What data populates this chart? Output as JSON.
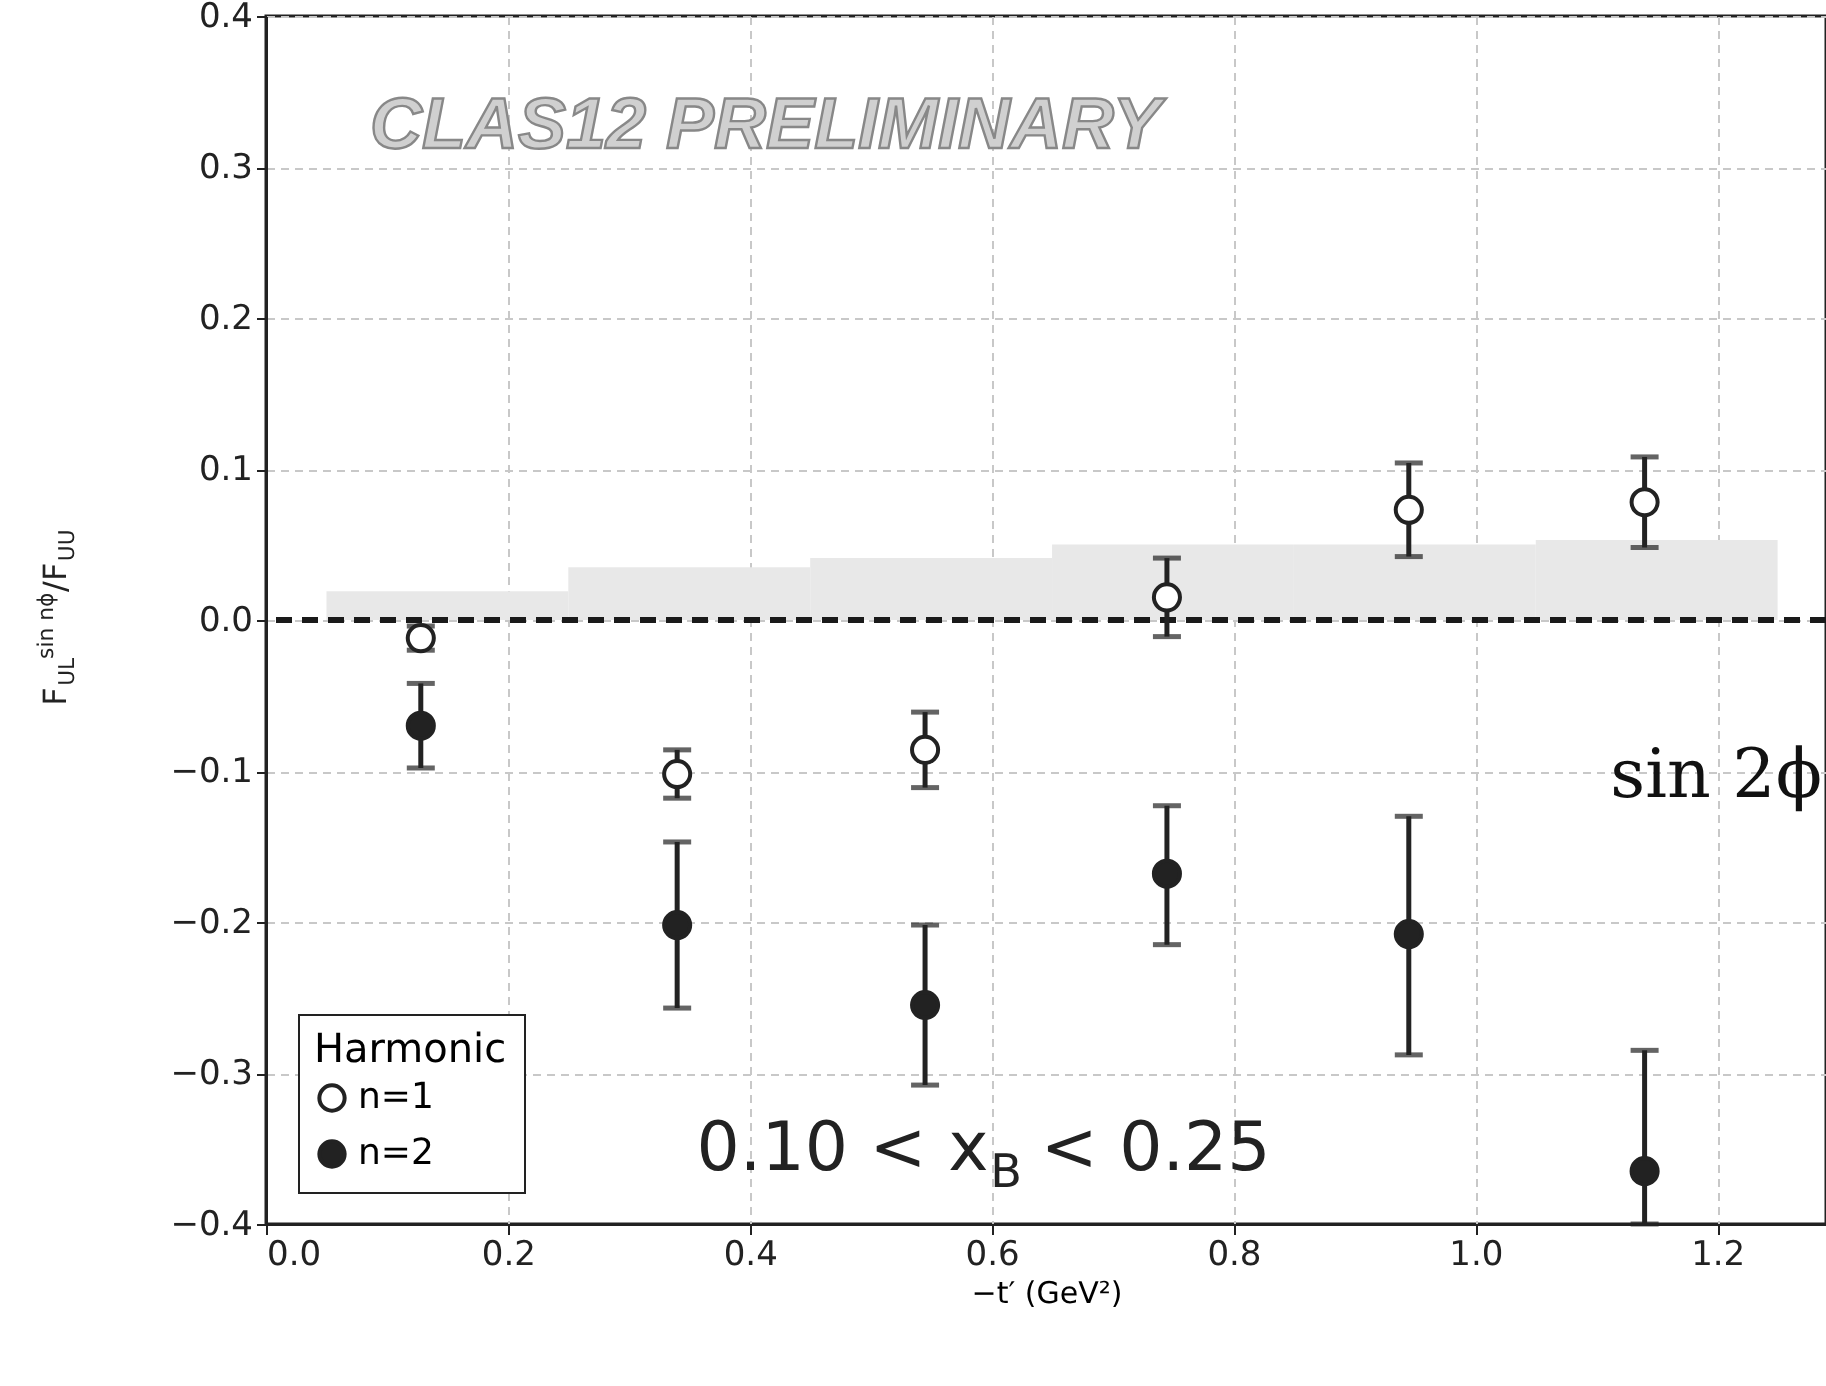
{
  "chart_data": {
    "type": "scatter",
    "xlabel": "−t′ (GeV²)",
    "ylabel": "F$_{UL}$$^{sin nϕ}$/F$_{UU}$",
    "legend_title": "Harmonic",
    "legend": "bottom left",
    "grid": true,
    "marker": "circle",
    "xlim": [
      0,
      1.29
    ],
    "xticks": [
      {
        "value": 0,
        "label": "0.0"
      },
      0.2,
      0.4,
      0.6,
      0.8,
      {
        "value": 1,
        "label": "1.0"
      },
      1.2
    ],
    "ylim": [
      -0.4,
      0.4
    ],
    "yticks": [
      {
        "value": -0.4,
        "label": "−0.4"
      },
      {
        "value": -0.3,
        "label": "−0.3"
      },
      {
        "value": -0.2,
        "label": "−0.2"
      },
      {
        "value": -0.1,
        "label": "−0.1"
      },
      {
        "value": 0,
        "label": "0.0"
      },
      0.1,
      0.2,
      0.3,
      0.4
    ],
    "ref_lines": [
      {
        "axis": "y",
        "value": 0,
        "color": "#1a1a1a",
        "line_style": "dashed"
      }
    ],
    "annotations": [
      "CLAS12 PRELIMINARY",
      "0.10 < x$_{B}$ < 0.25",
      "sin 2ϕ"
    ],
    "series": [
      {
        "type": "bar",
        "color": "#e8e8e8",
        "x": [
          0.15,
          0.35,
          0.55,
          0.75,
          0.95,
          1.15
        ],
        "values": [
          0.019,
          0.035,
          0.041,
          0.05,
          0.05,
          0.053
        ]
      },
      {
        "name": "n=1",
        "color": "#ffffff",
        "x": [
          0.128,
          0.34,
          0.545,
          0.745,
          0.945,
          1.14
        ],
        "values": [
          -0.012,
          -0.102,
          -0.086,
          0.015,
          0.073,
          0.078
        ],
        "errors": [
          [
            -0.02,
            -0.004
          ],
          [
            -0.118,
            -0.086
          ],
          [
            -0.111,
            -0.061
          ],
          [
            -0.011,
            0.041
          ],
          [
            0.042,
            0.104
          ],
          [
            0.048,
            0.108
          ]
        ]
      },
      {
        "name": "n=2",
        "color": "#222222",
        "x": [
          0.128,
          0.34,
          0.545,
          0.745,
          0.945,
          1.14
        ],
        "values": [
          -0.07,
          -0.202,
          -0.255,
          -0.168,
          -0.208,
          -0.365
        ],
        "errors": [
          [
            -0.098,
            -0.042
          ],
          [
            -0.257,
            -0.147
          ],
          [
            -0.308,
            -0.202
          ],
          [
            -0.215,
            -0.123
          ],
          [
            -0.288,
            -0.13
          ],
          [
            -0.4,
            -0.285
          ]
        ]
      }
    ]
  }
}
